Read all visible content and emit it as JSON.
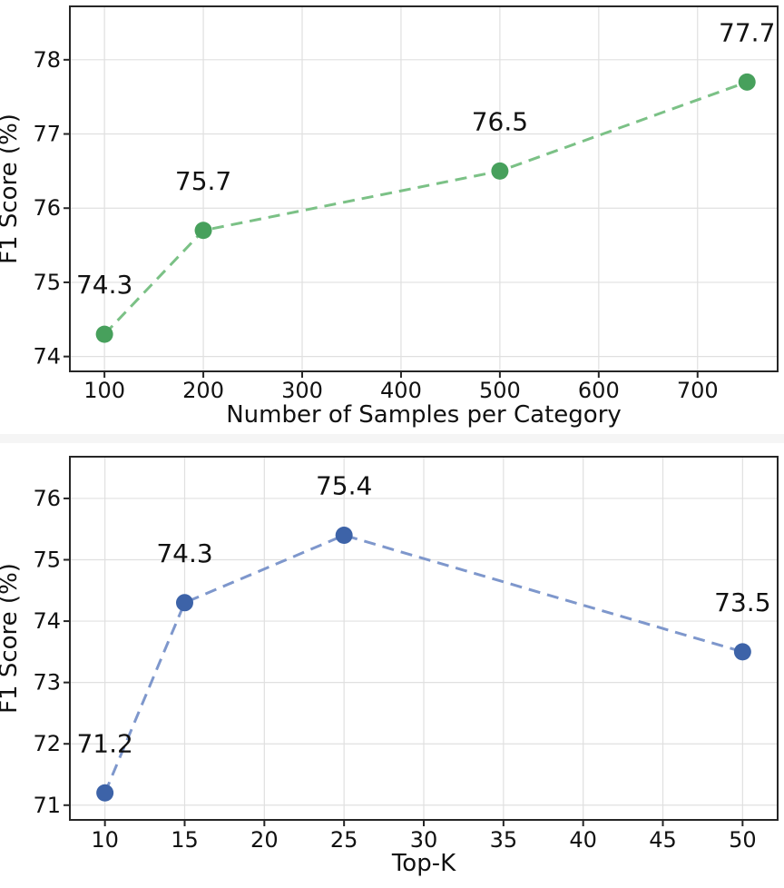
{
  "chart_data": [
    {
      "type": "line",
      "name": "f1-vs-samples",
      "xlabel": "Number of Samples per Category",
      "ylabel": "F1 Score (%)",
      "x": [
        100,
        200,
        500,
        750
      ],
      "y": [
        74.3,
        75.7,
        76.5,
        77.7
      ],
      "annotations": [
        "74.3",
        "75.7",
        "76.5",
        "77.7"
      ],
      "x_ticks": [
        100,
        200,
        300,
        400,
        500,
        600,
        700
      ],
      "y_ticks": [
        74,
        75,
        76,
        77,
        78
      ],
      "xlim": [
        65,
        781
      ],
      "ylim": [
        73.8,
        78.72
      ],
      "line_style": "dashed",
      "marker": "circle",
      "line_color": "#7bc186",
      "marker_color": "#47a05c",
      "grid": true,
      "grid_color": "#e0e0e0",
      "spine_color": "#262626",
      "legend": null
    },
    {
      "type": "line",
      "name": "f1-vs-topk",
      "xlabel": "Top-K",
      "ylabel": "F1 Score (%)",
      "x": [
        10,
        15,
        25,
        50
      ],
      "y": [
        71.2,
        74.3,
        75.4,
        73.5
      ],
      "annotations": [
        "71.2",
        "74.3",
        "75.4",
        "73.5"
      ],
      "x_ticks": [
        10,
        15,
        20,
        25,
        30,
        35,
        40,
        45,
        50
      ],
      "y_ticks": [
        71,
        72,
        73,
        74,
        75,
        76
      ],
      "xlim": [
        7.8,
        52.2
      ],
      "ylim": [
        70.76,
        76.68
      ],
      "line_style": "dashed",
      "marker": "circle",
      "line_color": "#7e97cc",
      "marker_color": "#3d63a8",
      "grid": true,
      "grid_color": "#e0e0e0",
      "spine_color": "#262626",
      "legend": null
    }
  ]
}
